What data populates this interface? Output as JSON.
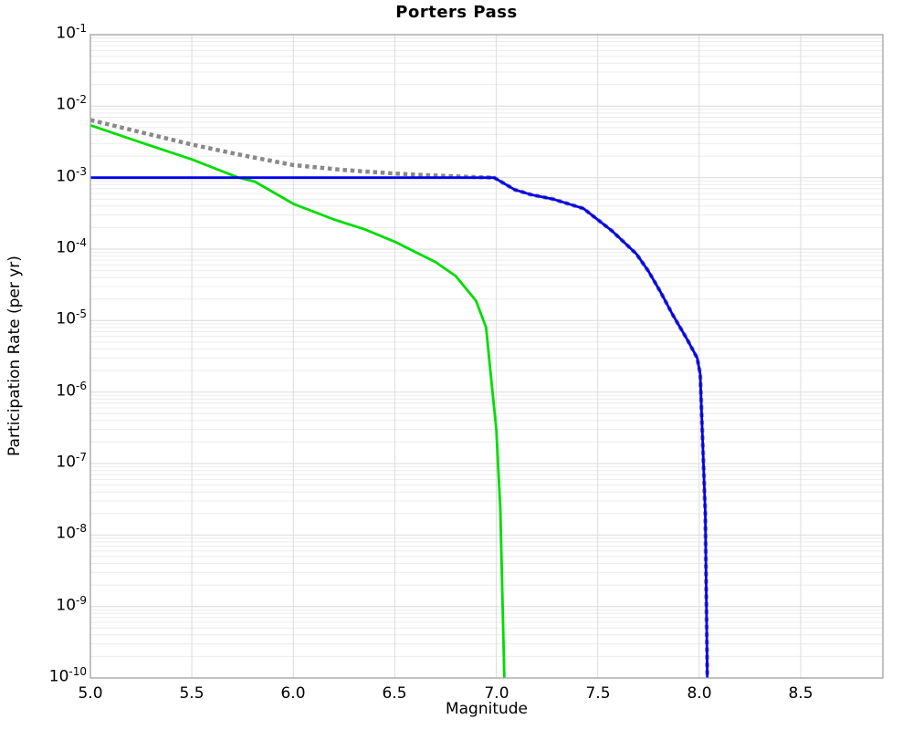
{
  "chart_data": {
    "type": "line",
    "title": "Porters Pass",
    "xlabel": "Magnitude",
    "ylabel": "Participation Rate (per yr)",
    "x_axis": {
      "min": 5.0,
      "max": 8.905,
      "tick_values": [
        5.0,
        5.5,
        6.0,
        6.5,
        7.0,
        7.5,
        8.0,
        8.5
      ],
      "tick_labels": [
        "5.0",
        "5.5",
        "6.0",
        "6.5",
        "7.0",
        "7.5",
        "8.0",
        "8.5"
      ]
    },
    "y_axis": {
      "scale": "log",
      "top_exponent": -1,
      "bottom_exponent": -10,
      "tick_base": "10",
      "tick_exponents": [
        -1,
        -2,
        -3,
        -4,
        -5,
        -6,
        -7,
        -8,
        -9,
        -10
      ]
    },
    "grid": {
      "enabled": true,
      "major_color": "#d9d9d9",
      "minor_color": "#ececec",
      "vertical_color": "#dcdcdc"
    },
    "frame_color": "#a0a0a0",
    "legend": null,
    "series": [
      {
        "name": "gray-dotted-total",
        "color": "#898989",
        "line_style": "dotted",
        "line_width": 4.5,
        "points": [
          [
            5.0,
            0.0064
          ],
          [
            5.25,
            0.0043
          ],
          [
            5.5,
            0.0029
          ],
          [
            5.75,
            0.00205
          ],
          [
            6.0,
            0.0015
          ],
          [
            6.25,
            0.00128
          ],
          [
            6.5,
            0.00114
          ],
          [
            6.7,
            0.00107
          ],
          [
            6.85,
            0.00103
          ],
          [
            6.99,
            0.001
          ],
          [
            7.09,
            0.00068
          ],
          [
            7.17,
            0.00058
          ],
          [
            7.28,
            0.0005
          ],
          [
            7.43,
            0.00037
          ],
          [
            7.57,
            0.00018
          ],
          [
            7.69,
            8.6e-05
          ],
          [
            7.75,
            4.9e-05
          ],
          [
            7.81,
            2.5e-05
          ],
          [
            7.87,
            1.2e-05
          ],
          [
            7.94,
            5.5e-06
          ],
          [
            7.99,
            3e-06
          ],
          [
            8.005,
            1.8e-06
          ],
          [
            8.03,
            2e-08
          ],
          [
            8.04,
            1e-10
          ]
        ]
      },
      {
        "name": "green-solid",
        "color": "#00dd00",
        "line_style": "solid",
        "line_width": 2.8,
        "points": [
          [
            5.0,
            0.0054
          ],
          [
            5.25,
            0.0031
          ],
          [
            5.5,
            0.0018
          ],
          [
            5.73,
            0.001
          ],
          [
            5.81,
            0.00088
          ],
          [
            6.0,
            0.00043
          ],
          [
            6.2,
            0.00026
          ],
          [
            6.35,
            0.00019
          ],
          [
            6.5,
            0.000127
          ],
          [
            6.7,
            6.6e-05
          ],
          [
            6.8,
            4.2e-05
          ],
          [
            6.9,
            1.9e-05
          ],
          [
            6.95,
            8e-06
          ],
          [
            6.98,
            1.1e-06
          ],
          [
            7.0,
            3e-07
          ],
          [
            7.02,
            2.3e-08
          ],
          [
            7.04,
            1e-10
          ]
        ]
      },
      {
        "name": "blue-solid",
        "color": "#0000ee",
        "line_style": "solid",
        "line_width": 2.8,
        "points": [
          [
            5.0,
            0.001
          ],
          [
            6.99,
            0.001
          ],
          [
            7.09,
            0.00068
          ],
          [
            7.17,
            0.00058
          ],
          [
            7.28,
            0.0005
          ],
          [
            7.43,
            0.00037
          ],
          [
            7.57,
            0.00018
          ],
          [
            7.69,
            8.6e-05
          ],
          [
            7.75,
            4.9e-05
          ],
          [
            7.81,
            2.5e-05
          ],
          [
            7.87,
            1.2e-05
          ],
          [
            7.94,
            5.5e-06
          ],
          [
            7.99,
            3e-06
          ],
          [
            8.005,
            1.8e-06
          ],
          [
            8.03,
            2e-08
          ],
          [
            8.04,
            1e-10
          ]
        ]
      }
    ]
  }
}
